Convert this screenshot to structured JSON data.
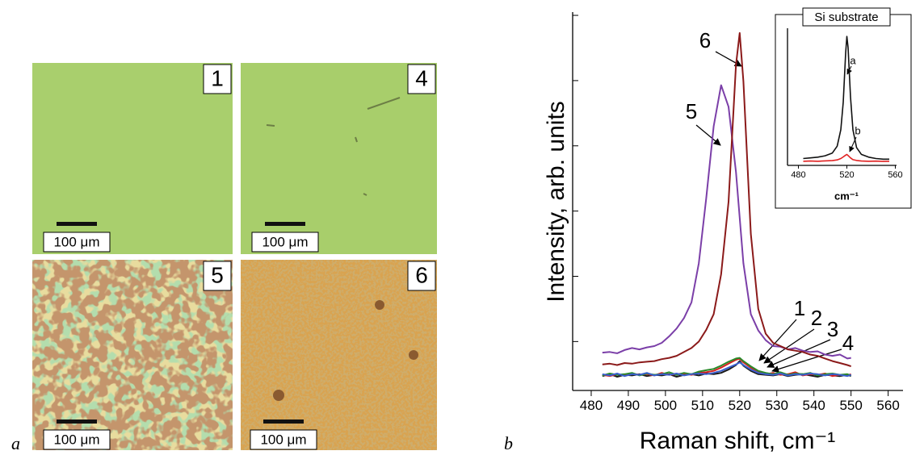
{
  "panel_a": {
    "label": "a",
    "images": [
      {
        "number": "1",
        "scale": "100 μm"
      },
      {
        "number": "4",
        "scale": "100 μm"
      },
      {
        "number": "5",
        "scale": "100 μm"
      },
      {
        "number": "6",
        "scale": "100 μm"
      }
    ]
  },
  "panel_b": {
    "label": "b"
  },
  "chart_data": [
    {
      "type": "line",
      "xlabel": "Raman shift, cm⁻¹",
      "ylabel": "Intensity, arb. units",
      "xlim": [
        475,
        564
      ],
      "ylim": [
        0.25,
        6.05
      ],
      "xticks": [
        480,
        490,
        500,
        510,
        520,
        530,
        540,
        550,
        560
      ],
      "yticks": [
        1,
        2,
        3,
        4,
        5,
        6
      ],
      "x": [
        483,
        485,
        487,
        489,
        491,
        493,
        495,
        497,
        499,
        501,
        503,
        505,
        507,
        509,
        511,
        513,
        515,
        517,
        519,
        520,
        521,
        523,
        525,
        527,
        529,
        531,
        533,
        535,
        537,
        539,
        541,
        543,
        545,
        547,
        549,
        550
      ],
      "series": [
        {
          "name": "1",
          "color": "#1a1a1a",
          "values": [
            0.47,
            0.5,
            0.46,
            0.49,
            0.48,
            0.5,
            0.47,
            0.49,
            0.48,
            0.5,
            0.46,
            0.49,
            0.5,
            0.48,
            0.51,
            0.5,
            0.52,
            0.57,
            0.64,
            0.7,
            0.63,
            0.55,
            0.5,
            0.49,
            0.48,
            0.5,
            0.47,
            0.49,
            0.5,
            0.48,
            0.46,
            0.49,
            0.48,
            0.47,
            0.49,
            0.47
          ]
        },
        {
          "name": "2",
          "color": "#d62020",
          "values": [
            0.49,
            0.47,
            0.5,
            0.48,
            0.51,
            0.49,
            0.5,
            0.48,
            0.52,
            0.49,
            0.5,
            0.51,
            0.49,
            0.52,
            0.53,
            0.55,
            0.6,
            0.66,
            0.72,
            0.74,
            0.68,
            0.6,
            0.54,
            0.5,
            0.52,
            0.49,
            0.5,
            0.53,
            0.48,
            0.5,
            0.49,
            0.51,
            0.47,
            0.49,
            0.48,
            0.5
          ]
        },
        {
          "name": "3",
          "color": "#2a8a2a",
          "values": [
            0.48,
            0.51,
            0.49,
            0.5,
            0.52,
            0.48,
            0.51,
            0.49,
            0.5,
            0.53,
            0.49,
            0.52,
            0.5,
            0.54,
            0.56,
            0.58,
            0.63,
            0.69,
            0.74,
            0.75,
            0.7,
            0.62,
            0.55,
            0.52,
            0.5,
            0.53,
            0.49,
            0.51,
            0.5,
            0.52,
            0.48,
            0.5,
            0.51,
            0.49,
            0.5,
            0.48
          ]
        },
        {
          "name": "4",
          "color": "#3a5fcd",
          "values": [
            0.5,
            0.48,
            0.51,
            0.47,
            0.5,
            0.49,
            0.52,
            0.48,
            0.5,
            0.49,
            0.51,
            0.48,
            0.5,
            0.51,
            0.5,
            0.52,
            0.55,
            0.6,
            0.65,
            0.68,
            0.64,
            0.57,
            0.52,
            0.5,
            0.49,
            0.51,
            0.48,
            0.5,
            0.49,
            0.51,
            0.5,
            0.48,
            0.5,
            0.49,
            0.47,
            0.49
          ]
        },
        {
          "name": "5",
          "color": "#7b3fa8",
          "values": [
            0.83,
            0.84,
            0.82,
            0.87,
            0.9,
            0.88,
            0.91,
            0.93,
            0.98,
            1.08,
            1.2,
            1.36,
            1.6,
            2.2,
            3.2,
            4.3,
            4.93,
            4.6,
            3.6,
            2.9,
            2.2,
            1.42,
            1.17,
            1.02,
            0.93,
            0.92,
            0.88,
            0.9,
            0.86,
            0.84,
            0.85,
            0.8,
            0.78,
            0.8,
            0.74,
            0.75
          ]
        },
        {
          "name": "6",
          "color": "#8b1a1a",
          "values": [
            0.65,
            0.66,
            0.64,
            0.67,
            0.66,
            0.68,
            0.69,
            0.7,
            0.73,
            0.75,
            0.78,
            0.84,
            0.9,
            1.0,
            1.18,
            1.42,
            2.03,
            3.14,
            5.24,
            5.73,
            4.99,
            2.65,
            1.5,
            1.12,
            0.98,
            0.93,
            0.88,
            0.86,
            0.84,
            0.8,
            0.78,
            0.74,
            0.7,
            0.67,
            0.64,
            0.62
          ]
        }
      ]
    },
    {
      "type": "line",
      "title": "Si substrate",
      "xlabel": "cm⁻¹",
      "xlim": [
        471,
        561
      ],
      "ylim": [
        0,
        10
      ],
      "xticks": [
        480,
        520,
        560
      ],
      "x": [
        484,
        490,
        496,
        502,
        508,
        512,
        515,
        517,
        519,
        520,
        521,
        523,
        525,
        528,
        532,
        538,
        544,
        550,
        555
      ],
      "series": [
        {
          "name": "a",
          "color": "#111111",
          "values": [
            0.5,
            0.55,
            0.6,
            0.7,
            0.9,
            1.4,
            2.6,
            4.6,
            8.2,
            9.4,
            8.6,
            5.0,
            2.6,
            1.3,
            0.8,
            0.6,
            0.5,
            0.45,
            0.45
          ]
        },
        {
          "name": "b",
          "color": "#e02020",
          "values": [
            0.3,
            0.32,
            0.3,
            0.33,
            0.35,
            0.4,
            0.5,
            0.62,
            0.75,
            0.8,
            0.72,
            0.55,
            0.42,
            0.36,
            0.32,
            0.3,
            0.31,
            0.29,
            0.3
          ]
        }
      ]
    }
  ]
}
